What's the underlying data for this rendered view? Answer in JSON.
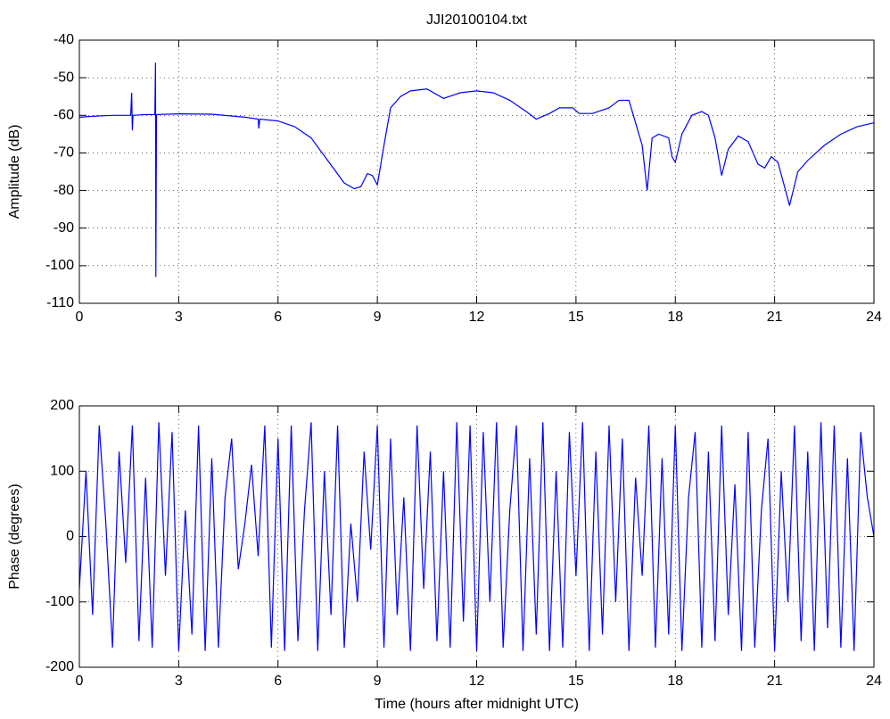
{
  "chart_data": [
    {
      "type": "line",
      "title": "JJI20100104.txt",
      "y_label": "Amplitude (dB)",
      "color": "#0000ff",
      "grid": true,
      "x": [
        0,
        0.5,
        1,
        1.55,
        1.58,
        1.6,
        1.62,
        2.0,
        2.28,
        2.3,
        2.31,
        2.33,
        3,
        4,
        5,
        5.4,
        5.42,
        5.45,
        6,
        6.5,
        7,
        7.5,
        8,
        8.3,
        8.5,
        8.7,
        8.85,
        9,
        9.2,
        9.4,
        9.7,
        10,
        10.5,
        11,
        11.5,
        12,
        12.5,
        13,
        13.5,
        13.8,
        14.2,
        14.5,
        14.9,
        15.1,
        15.5,
        16,
        16.3,
        16.6,
        16.8,
        17,
        17.15,
        17.3,
        17.5,
        17.8,
        17.9,
        18,
        18.2,
        18.5,
        18.8,
        19,
        19.2,
        19.4,
        19.6,
        19.9,
        20.2,
        20.5,
        20.7,
        20.9,
        21.1,
        21.3,
        21.45,
        21.7,
        22,
        22.5,
        23,
        23.5,
        24
      ],
      "values": [
        -60.5,
        -60.2,
        -60,
        -60,
        -54,
        -64,
        -60,
        -59.8,
        -59.8,
        -46,
        -103,
        -59.8,
        -59.6,
        -59.7,
        -60.5,
        -61,
        -63.5,
        -61,
        -61.5,
        -63,
        -66,
        -72,
        -78,
        -79.5,
        -79,
        -75.5,
        -76,
        -78.5,
        -68,
        -58,
        -55,
        -53.5,
        -53,
        -55.5,
        -54,
        -53.5,
        -54,
        -56,
        -59,
        -61,
        -59.5,
        -58,
        -58,
        -59.5,
        -59.5,
        -58,
        -56,
        -56,
        -62,
        -68,
        -80,
        -66,
        -65,
        -66,
        -71,
        -72.5,
        -65,
        -60,
        -59,
        -60,
        -66,
        -76,
        -69,
        -65.5,
        -67,
        -73,
        -74,
        -71,
        -72.5,
        -79,
        -84,
        -75,
        -72,
        -68,
        -65,
        -63,
        -62
      ],
      "xlim": [
        0,
        24
      ],
      "xticks": [
        0,
        3,
        6,
        9,
        12,
        15,
        18,
        21,
        24
      ],
      "ylim": [
        -110,
        -40
      ],
      "yticks": [
        -110,
        -100,
        -90,
        -80,
        -70,
        -60,
        -50,
        -40
      ]
    },
    {
      "type": "line",
      "y_label": "Phase (degrees)",
      "x_label": "Time (hours after midnight UTC)",
      "color": "#0000ff",
      "grid": true,
      "x": [
        0,
        0.2,
        0.4,
        0.6,
        0.8,
        1,
        1.2,
        1.4,
        1.6,
        1.8,
        2,
        2.2,
        2.4,
        2.6,
        2.8,
        3,
        3.2,
        3.4,
        3.6,
        3.8,
        4,
        4.2,
        4.4,
        4.6,
        4.8,
        5,
        5.2,
        5.4,
        5.6,
        5.8,
        6,
        6.2,
        6.4,
        6.6,
        6.8,
        7,
        7.2,
        7.4,
        7.6,
        7.8,
        8,
        8.2,
        8.4,
        8.6,
        8.8,
        9,
        9.2,
        9.4,
        9.6,
        9.8,
        10,
        10.2,
        10.4,
        10.6,
        10.8,
        11,
        11.2,
        11.4,
        11.6,
        11.8,
        12,
        12.2,
        12.4,
        12.6,
        12.8,
        13,
        13.2,
        13.4,
        13.6,
        13.8,
        14,
        14.2,
        14.4,
        14.6,
        14.8,
        15,
        15.2,
        15.4,
        15.6,
        15.8,
        16,
        16.2,
        16.4,
        16.6,
        16.8,
        17,
        17.2,
        17.4,
        17.6,
        17.8,
        18,
        18.2,
        18.4,
        18.6,
        18.8,
        19,
        19.2,
        19.4,
        19.6,
        19.8,
        20,
        20.2,
        20.4,
        20.6,
        20.8,
        21,
        21.2,
        21.4,
        21.6,
        21.8,
        22,
        22.2,
        22.4,
        22.6,
        22.8,
        23,
        23.2,
        23.4,
        23.6,
        23.8,
        24
      ],
      "values": [
        -80,
        100,
        -120,
        170,
        20,
        -170,
        130,
        -40,
        170,
        -160,
        90,
        -170,
        175,
        -60,
        160,
        -175,
        40,
        -150,
        170,
        -175,
        120,
        -170,
        60,
        150,
        -50,
        20,
        110,
        -30,
        170,
        -170,
        150,
        -175,
        170,
        -160,
        40,
        175,
        -175,
        100,
        -120,
        170,
        -170,
        20,
        -100,
        130,
        -20,
        170,
        -170,
        150,
        -120,
        60,
        -175,
        170,
        -80,
        130,
        -160,
        100,
        -170,
        175,
        -130,
        170,
        -175,
        160,
        -100,
        175,
        -170,
        40,
        170,
        -175,
        120,
        -150,
        175,
        -175,
        100,
        -170,
        160,
        -60,
        175,
        -175,
        130,
        -150,
        170,
        -100,
        150,
        -175,
        90,
        -60,
        170,
        -170,
        120,
        -150,
        170,
        -175,
        60,
        160,
        -170,
        130,
        -160,
        170,
        -120,
        80,
        -175,
        160,
        -170,
        40,
        150,
        -175,
        100,
        -100,
        170,
        -160,
        130,
        -175,
        175,
        -140,
        170,
        -170,
        120,
        -175,
        160,
        60,
        0
      ],
      "xlim": [
        0,
        24
      ],
      "xticks": [
        0,
        3,
        6,
        9,
        12,
        15,
        18,
        21,
        24
      ],
      "ylim": [
        -200,
        200
      ],
      "yticks": [
        -200,
        -100,
        0,
        100,
        200
      ]
    }
  ]
}
